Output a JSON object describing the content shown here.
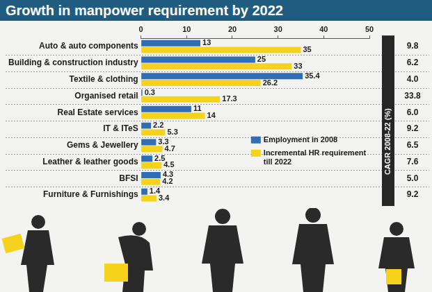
{
  "chart_data": {
    "type": "bar",
    "title": "Growth in manpower requirement by 2022",
    "orientation": "horizontal",
    "categories": [
      "Auto & auto components",
      "Building & construction industry",
      "Textile & clothing",
      "Organised retail",
      "Real Estate services",
      "IT & ITeS",
      "Gems & Jewellery",
      "Leather & leather goods",
      "BFSI",
      "Furniture & Furnishings"
    ],
    "series": [
      {
        "name": "Employment in 2008",
        "color": "#2f6db5",
        "values": [
          13,
          25,
          35.4,
          0.3,
          11,
          2.2,
          3.3,
          2.5,
          4.3,
          1.4
        ]
      },
      {
        "name": "Incremental HR requirement till 2022",
        "color": "#f6d21c",
        "values": [
          35,
          33,
          26.2,
          17.3,
          14,
          5.3,
          4.7,
          4.5,
          4.2,
          3.4
        ]
      }
    ],
    "xlim": [
      0,
      50
    ],
    "xticks": [
      0,
      10,
      20,
      30,
      40,
      50
    ],
    "grid": false,
    "data_labels": true,
    "legend": "lower right",
    "cagr": {
      "name": "CAGR 2008-22 (%)",
      "values": [
        9.8,
        6.2,
        4.0,
        33.8,
        6.0,
        9.2,
        6.5,
        7.6,
        5.0,
        9.2
      ],
      "value_labels": [
        "9.8",
        "6.2",
        "4.0",
        "33.8",
        "6.0",
        "9.2",
        "6.5",
        "7.6",
        "5.0",
        "9.2"
      ]
    }
  }
}
